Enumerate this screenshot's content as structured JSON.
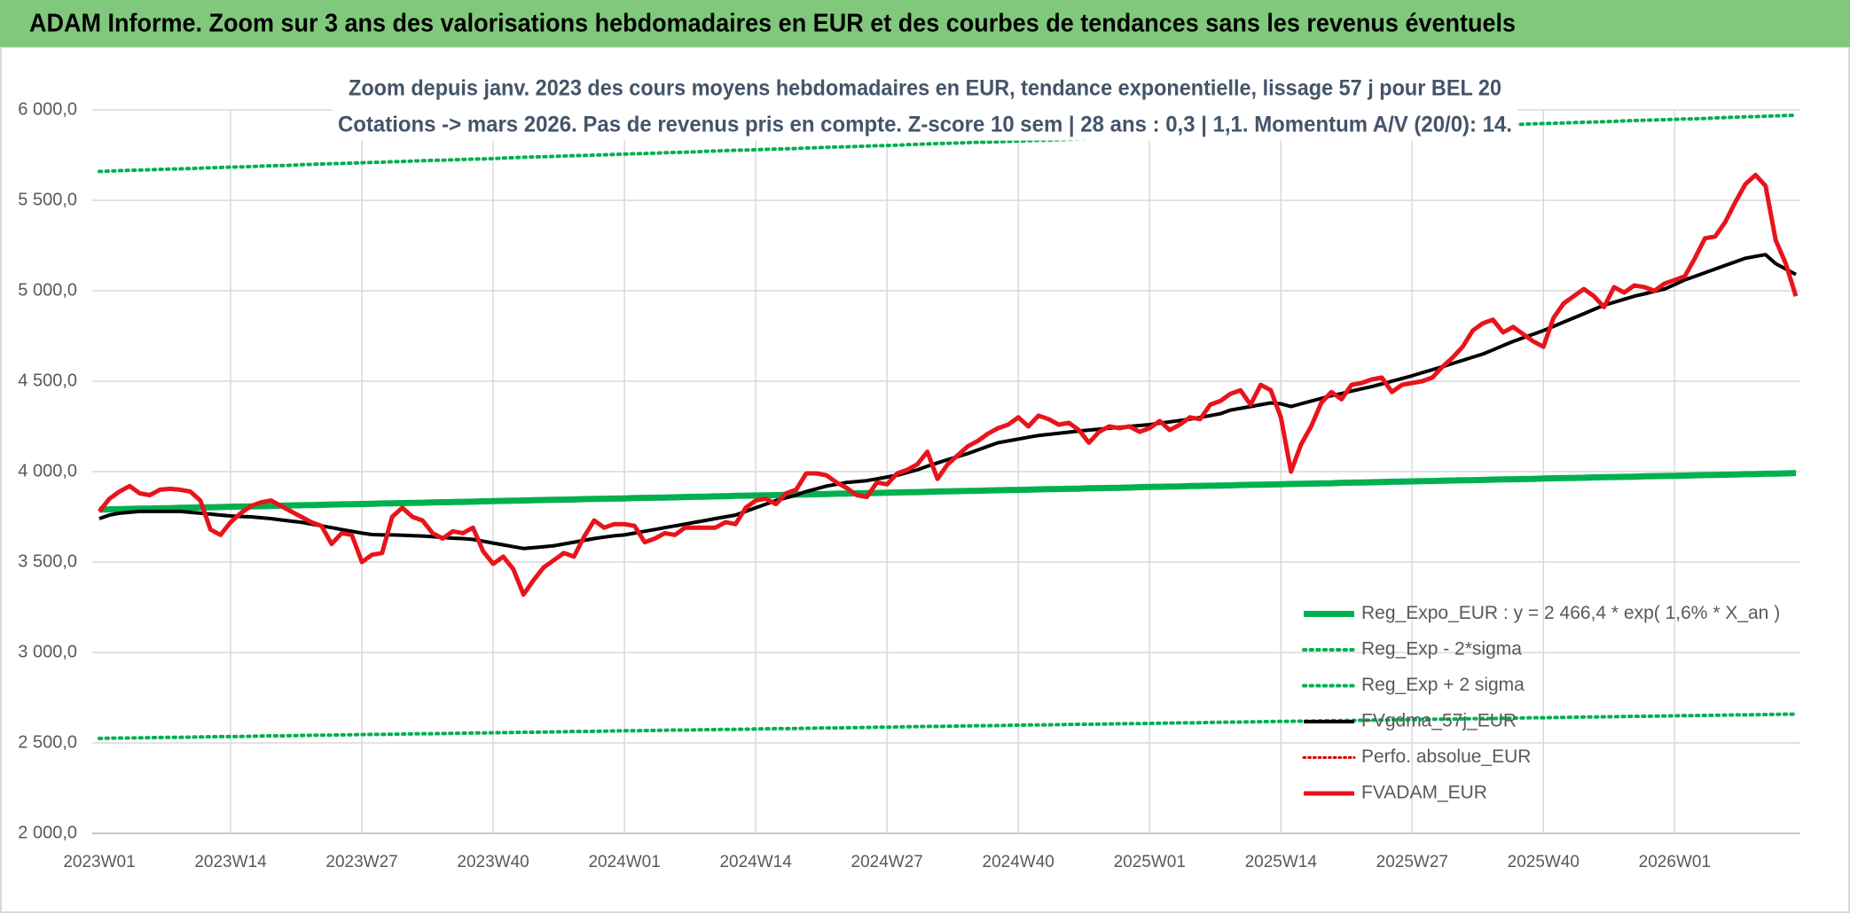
{
  "header": {
    "title": "ADAM Informe. Zoom sur 3 ans des valorisations hebdomadaires en EUR et des courbes de tendances sans les revenus éventuels"
  },
  "chart_data": {
    "type": "line",
    "title": "Zoom depuis janv. 2023 des cours moyens hebdomadaires en EUR, tendance exponentielle, lissage 57 j pour BEL 20",
    "subtitle": "Cotations -> mars 2026. Pas de revenus pris en compte. Z-score 10 sem | 28 ans : 0,3 | 1,1. Momentum A/V (20/0): 14.",
    "legend": "lower right",
    "grid": true,
    "ylim": [
      2000,
      6000
    ],
    "yticks": [
      {
        "value": 2000,
        "label": "2 000,0"
      },
      {
        "value": 2500,
        "label": "2 500,0"
      },
      {
        "value": 3000,
        "label": "3 000,0"
      },
      {
        "value": 3500,
        "label": "3 500,0"
      },
      {
        "value": 4000,
        "label": "4 000,0"
      },
      {
        "value": 4500,
        "label": "4 500,0"
      },
      {
        "value": 5000,
        "label": "5 000,0"
      },
      {
        "value": 5500,
        "label": "5 500,0"
      },
      {
        "value": 6000,
        "label": "6 000,0"
      }
    ],
    "categories": [
      "2023W01",
      null,
      null,
      null,
      null,
      null,
      null,
      null,
      null,
      null,
      null,
      null,
      null,
      "2023W14",
      null,
      null,
      null,
      null,
      null,
      null,
      null,
      null,
      null,
      null,
      null,
      null,
      "2023W27",
      null,
      null,
      null,
      null,
      null,
      null,
      null,
      null,
      null,
      null,
      null,
      null,
      "2023W40",
      null,
      null,
      null,
      null,
      null,
      null,
      null,
      null,
      null,
      null,
      null,
      null,
      "2024W01",
      null,
      null,
      null,
      null,
      null,
      null,
      null,
      null,
      null,
      null,
      null,
      null,
      "2024W14",
      null,
      null,
      null,
      null,
      null,
      null,
      null,
      null,
      null,
      null,
      null,
      null,
      "2024W27",
      null,
      null,
      null,
      null,
      null,
      null,
      null,
      null,
      null,
      null,
      null,
      null,
      "2024W40",
      null,
      null,
      null,
      null,
      null,
      null,
      null,
      null,
      null,
      null,
      null,
      null,
      "2025W01",
      null,
      null,
      null,
      null,
      null,
      null,
      null,
      null,
      null,
      null,
      null,
      null,
      "2025W14",
      null,
      null,
      null,
      null,
      null,
      null,
      null,
      null,
      null,
      null,
      null,
      null,
      "2025W27",
      null,
      null,
      null,
      null,
      null,
      null,
      null,
      null,
      null,
      null,
      null,
      null,
      "2025W40",
      null,
      null,
      null,
      null,
      null,
      null,
      null,
      null,
      null,
      null,
      null,
      null,
      "2026W01",
      null,
      null,
      null,
      null,
      null,
      null,
      null,
      null,
      null,
      null,
      null,
      null
    ],
    "series": [
      {
        "name": "Reg_Expo_EUR : y = 2 466,4 * exp( 1,6% *  X_an )",
        "color": "#00b050",
        "width": 7,
        "dash": "solid",
        "values": [
          3790,
          3791,
          3792,
          3794,
          3795,
          3796,
          3797,
          3798,
          3800,
          3801,
          3802,
          3803,
          3804,
          3806,
          3807,
          3808,
          3809,
          3810,
          3812,
          3813,
          3814,
          3815,
          3816,
          3818,
          3819,
          3820,
          3821,
          3822,
          3824,
          3825,
          3826,
          3827,
          3828,
          3830,
          3831,
          3832,
          3833,
          3834,
          3836,
          3837,
          3838,
          3839,
          3840,
          3842,
          3843,
          3844,
          3845,
          3846,
          3848,
          3849,
          3850,
          3851,
          3852,
          3854,
          3855,
          3856,
          3857,
          3858,
          3860,
          3861,
          3862,
          3863,
          3864,
          3866,
          3867,
          3868,
          3869,
          3870,
          3872,
          3873,
          3874,
          3875,
          3876,
          3878,
          3879,
          3880,
          3881,
          3882,
          3884,
          3885,
          3886,
          3887,
          3888,
          3890,
          3891,
          3892,
          3893,
          3894,
          3896,
          3897,
          3898,
          3899,
          3900,
          3902,
          3903,
          3904,
          3905,
          3906,
          3908,
          3909,
          3910,
          3911,
          3912,
          3914,
          3915,
          3916,
          3917,
          3918,
          3920,
          3921,
          3922,
          3923,
          3924,
          3926,
          3927,
          3928,
          3929,
          3930,
          3932,
          3933,
          3934,
          3935,
          3936,
          3938,
          3939,
          3940,
          3941,
          3942,
          3944,
          3945,
          3946,
          3947,
          3948,
          3950,
          3951,
          3952,
          3953,
          3954,
          3956,
          3957,
          3958,
          3959,
          3960,
          3962,
          3963,
          3964,
          3965,
          3966,
          3968,
          3969,
          3970,
          3971,
          3972,
          3974,
          3975,
          3976,
          3977,
          3978,
          3980,
          3981,
          3982,
          3983,
          3984,
          3986,
          3987,
          3988,
          3989,
          3990,
          3992
        ]
      },
      {
        "name": "Reg_Exp - 2*sigma",
        "color": "#00b050",
        "width": 4,
        "dash": "dotted",
        "values": [
          2525,
          2526,
          2527,
          2527,
          2528,
          2529,
          2530,
          2531,
          2531,
          2532,
          2533,
          2534,
          2535,
          2535,
          2536,
          2537,
          2538,
          2539,
          2539,
          2540,
          2541,
          2542,
          2543,
          2543,
          2544,
          2545,
          2546,
          2547,
          2547,
          2548,
          2549,
          2550,
          2551,
          2551,
          2552,
          2553,
          2554,
          2555,
          2555,
          2556,
          2557,
          2558,
          2559,
          2559,
          2560,
          2561,
          2562,
          2563,
          2563,
          2564,
          2565,
          2566,
          2567,
          2567,
          2568,
          2569,
          2570,
          2571,
          2571,
          2572,
          2573,
          2574,
          2575,
          2575,
          2576,
          2577,
          2578,
          2579,
          2579,
          2580,
          2581,
          2582,
          2583,
          2583,
          2584,
          2585,
          2586,
          2587,
          2587,
          2588,
          2589,
          2590,
          2591,
          2591,
          2592,
          2593,
          2594,
          2595,
          2595,
          2596,
          2597,
          2598,
          2599,
          2599,
          2600,
          2601,
          2602,
          2603,
          2603,
          2604,
          2605,
          2606,
          2607,
          2607,
          2608,
          2609,
          2610,
          2611,
          2611,
          2612,
          2613,
          2614,
          2615,
          2615,
          2616,
          2617,
          2618,
          2619,
          2619,
          2620,
          2621,
          2622,
          2623,
          2623,
          2624,
          2625,
          2626,
          2627,
          2627,
          2628,
          2629,
          2630,
          2631,
          2631,
          2632,
          2633,
          2634,
          2635,
          2635,
          2636,
          2637,
          2638,
          2639,
          2639,
          2640,
          2641,
          2642,
          2643,
          2643,
          2644,
          2645,
          2646,
          2647,
          2647,
          2648,
          2649,
          2650,
          2651,
          2651,
          2652,
          2653,
          2654,
          2655,
          2655,
          2656,
          2657,
          2658,
          2659,
          2659
        ]
      },
      {
        "name": "Reg_Exp + 2 sigma",
        "color": "#00b050",
        "width": 4,
        "dash": "dotted",
        "values": [
          5660,
          5662,
          5664,
          5666,
          5667,
          5669,
          5671,
          5673,
          5674,
          5676,
          5678,
          5680,
          5682,
          5684,
          5685,
          5687,
          5689,
          5691,
          5692,
          5694,
          5697,
          5699,
          5701,
          5703,
          5704,
          5706,
          5708,
          5710,
          5711,
          5713,
          5715,
          5717,
          5719,
          5721,
          5722,
          5724,
          5726,
          5728,
          5729,
          5731,
          5734,
          5736,
          5738,
          5740,
          5741,
          5743,
          5745,
          5747,
          5748,
          5750,
          5752,
          5754,
          5756,
          5758,
          5759,
          5761,
          5763,
          5765,
          5766,
          5768,
          5771,
          5773,
          5775,
          5777,
          5778,
          5780,
          5782,
          5784,
          5785,
          5787,
          5789,
          5791,
          5793,
          5795,
          5796,
          5798,
          5800,
          5802,
          5803,
          5805,
          5808,
          5810,
          5812,
          5814,
          5815,
          5817,
          5819,
          5821,
          5822,
          5824,
          5826,
          5828,
          5830,
          5832,
          5833,
          5835,
          5837,
          5839,
          5840,
          5842,
          5845,
          5847,
          5849,
          5851,
          5852,
          5854,
          5856,
          5858,
          5859,
          5861,
          5863,
          5865,
          5867,
          5869,
          5870,
          5872,
          5874,
          5876,
          5877,
          5879,
          5882,
          5884,
          5886,
          5888,
          5889,
          5891,
          5893,
          5895,
          5896,
          5898,
          5900,
          5902,
          5904,
          5906,
          5907,
          5909,
          5911,
          5913,
          5914,
          5916,
          5919,
          5921,
          5923,
          5925,
          5926,
          5928,
          5930,
          5932,
          5933,
          5935,
          5937,
          5939,
          5941,
          5943,
          5944,
          5946,
          5948,
          5950,
          5951,
          5953,
          5956,
          5958,
          5960,
          5962,
          5963,
          5965,
          5967,
          5969,
          5970
        ]
      },
      {
        "name": "FVgdma_57j_EUR",
        "color": "#000000",
        "width": 4,
        "dash": "solid",
        "values": [
          3740,
          3760,
          3770,
          3775,
          3780,
          3780,
          3780,
          3780,
          3780,
          3775,
          3770,
          3765,
          3760,
          3755,
          3752,
          3750,
          3745,
          3740,
          3733,
          3726,
          3720,
          3710,
          3700,
          3690,
          3680,
          3670,
          3660,
          3652,
          3650,
          3650,
          3648,
          3646,
          3644,
          3640,
          3636,
          3632,
          3630,
          3625,
          3615,
          3605,
          3595,
          3585,
          3575,
          3580,
          3585,
          3590,
          3600,
          3610,
          3620,
          3630,
          3638,
          3645,
          3650,
          3660,
          3670,
          3680,
          3690,
          3700,
          3710,
          3720,
          3730,
          3740,
          3750,
          3760,
          3780,
          3800,
          3820,
          3840,
          3855,
          3870,
          3890,
          3905,
          3920,
          3930,
          3940,
          3945,
          3950,
          3960,
          3970,
          3980,
          3995,
          4010,
          4030,
          4048,
          4066,
          4083,
          4100,
          4120,
          4140,
          4160,
          4170,
          4180,
          4190,
          4200,
          4206,
          4212,
          4218,
          4224,
          4230,
          4235,
          4240,
          4245,
          4250,
          4255,
          4260,
          4268,
          4275,
          4283,
          4290,
          4300,
          4310,
          4320,
          4340,
          4350,
          4360,
          4370,
          4380,
          4375,
          4360,
          4375,
          4390,
          4405,
          4420,
          4432,
          4445,
          4458,
          4470,
          4485,
          4500,
          4515,
          4530,
          4547,
          4563,
          4580,
          4598,
          4615,
          4633,
          4650,
          4673,
          4697,
          4720,
          4740,
          4760,
          4780,
          4803,
          4827,
          4850,
          4873,
          4897,
          4920,
          4937,
          4953,
          4970,
          4983,
          4997,
          5010,
          5035,
          5060,
          5080,
          5100,
          5120,
          5140,
          5160,
          5180,
          5190,
          5200,
          5150,
          5120,
          5090
        ]
      },
      {
        "name": "Perfo. absolue_EUR",
        "color": "#e00000",
        "width": 3,
        "dash": "dotted"
      },
      {
        "name": "FVADAM_EUR",
        "color": "#e8141b",
        "width": 5,
        "dash": "solid",
        "values": [
          3780,
          3850,
          3890,
          3920,
          3880,
          3870,
          3900,
          3905,
          3900,
          3890,
          3840,
          3680,
          3650,
          3720,
          3770,
          3810,
          3830,
          3840,
          3810,
          3780,
          3750,
          3720,
          3700,
          3600,
          3660,
          3650,
          3500,
          3540,
          3550,
          3750,
          3800,
          3750,
          3730,
          3660,
          3630,
          3670,
          3660,
          3690,
          3560,
          3490,
          3530,
          3460,
          3320,
          3400,
          3470,
          3510,
          3550,
          3530,
          3640,
          3730,
          3690,
          3710,
          3710,
          3700,
          3610,
          3630,
          3660,
          3650,
          3690,
          3690,
          3690,
          3690,
          3720,
          3710,
          3800,
          3840,
          3850,
          3820,
          3880,
          3900,
          3990,
          3990,
          3980,
          3940,
          3910,
          3870,
          3860,
          3940,
          3930,
          3990,
          4010,
          4040,
          4110,
          3960,
          4040,
          4090,
          4140,
          4170,
          4210,
          4240,
          4260,
          4300,
          4250,
          4310,
          4290,
          4260,
          4270,
          4230,
          4160,
          4220,
          4250,
          4240,
          4250,
          4220,
          4240,
          4280,
          4230,
          4260,
          4300,
          4290,
          4370,
          4390,
          4430,
          4450,
          4370,
          4480,
          4450,
          4300,
          4000,
          4150,
          4250,
          4380,
          4440,
          4400,
          4480,
          4490,
          4510,
          4520,
          4440,
          4480,
          4490,
          4500,
          4520,
          4580,
          4630,
          4690,
          4780,
          4820,
          4840,
          4770,
          4800,
          4760,
          4720,
          4690,
          4850,
          4930,
          4970,
          5010,
          4970,
          4910,
          5020,
          4990,
          5030,
          5020,
          5000,
          5040,
          5060,
          5080,
          5180,
          5290,
          5300,
          5380,
          5490,
          5590,
          5640,
          5580,
          5280,
          5150,
          4970
        ]
      }
    ]
  }
}
